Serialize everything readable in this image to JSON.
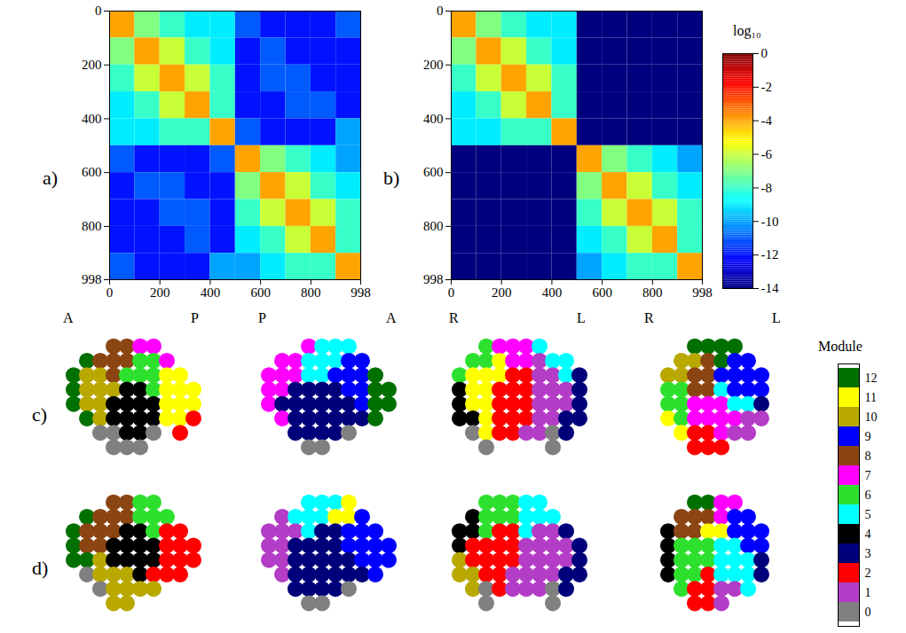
{
  "chart_data": [
    {
      "type": "heatmap",
      "panel": "a)",
      "xlim": [
        0,
        998
      ],
      "ylim": [
        0,
        998
      ],
      "xticks": [
        0,
        200,
        400,
        600,
        800,
        998
      ],
      "yticks": [
        0,
        200,
        400,
        600,
        800,
        998
      ],
      "bins": [
        0,
        100,
        200,
        300,
        400,
        500,
        600,
        700,
        800,
        900,
        998
      ],
      "values": [
        [
          -4,
          -7,
          -8,
          -9,
          -9,
          -11,
          -12,
          -12,
          -12,
          -11
        ],
        [
          -7,
          -4,
          -6,
          -8,
          -9,
          -12,
          -11,
          -12,
          -12,
          -12
        ],
        [
          -8,
          -6,
          -4,
          -6,
          -8,
          -12,
          -11,
          -11,
          -12,
          -12
        ],
        [
          -9,
          -8,
          -6,
          -4,
          -8,
          -12,
          -12,
          -11,
          -11,
          -12
        ],
        [
          -9,
          -9,
          -8,
          -8,
          -4,
          -11,
          -12,
          -12,
          -12,
          -10
        ],
        [
          -11,
          -12,
          -12,
          -12,
          -11,
          -4,
          -7,
          -8,
          -9,
          -10
        ],
        [
          -12,
          -11,
          -11,
          -12,
          -12,
          -7,
          -4,
          -6,
          -8,
          -9
        ],
        [
          -12,
          -12,
          -11,
          -11,
          -12,
          -8,
          -6,
          -4,
          -6,
          -8
        ],
        [
          -12,
          -12,
          -12,
          -11,
          -12,
          -9,
          -8,
          -6,
          -4,
          -8
        ],
        [
          -11,
          -12,
          -12,
          -12,
          -10,
          -10,
          -9,
          -8,
          -8,
          -4
        ]
      ]
    },
    {
      "type": "heatmap",
      "panel": "b)",
      "xlim": [
        0,
        998
      ],
      "ylim": [
        0,
        998
      ],
      "xticks": [
        0,
        200,
        400,
        600,
        800,
        998
      ],
      "yticks": [
        0,
        200,
        400,
        600,
        800,
        998
      ],
      "bins": [
        0,
        100,
        200,
        300,
        400,
        500,
        600,
        700,
        800,
        900,
        998
      ],
      "values": [
        [
          -4,
          -7,
          -8,
          -9,
          -9,
          -14,
          -14,
          -14,
          -14,
          -14
        ],
        [
          -7,
          -4,
          -6,
          -8,
          -9,
          -14,
          -14,
          -14,
          -14,
          -14
        ],
        [
          -8,
          -6,
          -4,
          -6,
          -8,
          -14,
          -14,
          -14,
          -14,
          -14
        ],
        [
          -9,
          -8,
          -6,
          -4,
          -8,
          -14,
          -14,
          -14,
          -14,
          -14
        ],
        [
          -9,
          -9,
          -8,
          -8,
          -4,
          -14,
          -14,
          -14,
          -14,
          -14
        ],
        [
          -14,
          -14,
          -14,
          -14,
          -14,
          -4,
          -7,
          -8,
          -9,
          -10
        ],
        [
          -14,
          -14,
          -14,
          -14,
          -14,
          -7,
          -4,
          -6,
          -8,
          -9
        ],
        [
          -14,
          -14,
          -14,
          -14,
          -14,
          -8,
          -6,
          -4,
          -6,
          -8
        ],
        [
          -14,
          -14,
          -14,
          -14,
          -14,
          -9,
          -8,
          -6,
          -4,
          -8
        ],
        [
          -14,
          -14,
          -14,
          -14,
          -14,
          -10,
          -9,
          -8,
          -8,
          -4
        ]
      ],
      "colorbar": {
        "title": "log₁₀",
        "range": [
          -14,
          0
        ],
        "ticks": [
          0,
          -2,
          -4,
          -6,
          -8,
          -10,
          -12,
          -14
        ]
      }
    },
    {
      "type": "scatter",
      "panel": "c)",
      "module_title": "Module",
      "module_ticks": [
        0,
        1,
        2,
        3,
        4,
        5,
        6,
        7,
        8,
        9,
        10,
        11,
        12
      ],
      "colors": [
        "#808080",
        "#b33dc6",
        "#ff0000",
        "#00007a",
        "#000000",
        "#00ffff",
        "#2ee02e",
        "#ff00ff",
        "#8b4513",
        "#0000ff",
        "#b8a800",
        "#ffff00",
        "#007000"
      ],
      "views": [
        {
          "labels": [
            "A",
            "P"
          ],
          "modules": [
            [
              null,
              null,
              null,
              8,
              8,
              7,
              7,
              null,
              null,
              null
            ],
            [
              null,
              12,
              8,
              8,
              8,
              6,
              6,
              7,
              null,
              null
            ],
            [
              12,
              10,
              10,
              8,
              6,
              6,
              6,
              11,
              11,
              null
            ],
            [
              12,
              10,
              10,
              10,
              4,
              4,
              6,
              11,
              11,
              11
            ],
            [
              12,
              10,
              10,
              4,
              4,
              4,
              4,
              11,
              11,
              11
            ],
            [
              null,
              12,
              10,
              4,
              4,
              4,
              4,
              11,
              11,
              2
            ],
            [
              null,
              null,
              0,
              0,
              4,
              4,
              0,
              null,
              2,
              null
            ],
            [
              null,
              null,
              null,
              0,
              0,
              0,
              null,
              null,
              null,
              null
            ]
          ]
        },
        {
          "labels": [
            "P",
            "A"
          ],
          "modules": [
            [
              null,
              null,
              null,
              7,
              5,
              5,
              5,
              null,
              null,
              null
            ],
            [
              null,
              7,
              7,
              5,
              5,
              5,
              9,
              9,
              null,
              null
            ],
            [
              7,
              7,
              7,
              5,
              5,
              9,
              9,
              9,
              12,
              null
            ],
            [
              7,
              7,
              3,
              3,
              3,
              3,
              9,
              9,
              12,
              12
            ],
            [
              7,
              3,
              3,
              3,
              3,
              3,
              3,
              9,
              12,
              12
            ],
            [
              null,
              7,
              3,
              3,
              3,
              3,
              3,
              3,
              12,
              null
            ],
            [
              null,
              null,
              3,
              3,
              3,
              3,
              0,
              null,
              null,
              null
            ],
            [
              null,
              null,
              null,
              0,
              0,
              null,
              null,
              null,
              null,
              null
            ]
          ]
        },
        {
          "labels": [
            "R",
            "L"
          ],
          "modules": [
            [
              null,
              null,
              6,
              7,
              7,
              7,
              5,
              null,
              null,
              null
            ],
            [
              null,
              6,
              6,
              11,
              7,
              7,
              1,
              5,
              5,
              null
            ],
            [
              6,
              11,
              11,
              11,
              2,
              2,
              1,
              1,
              5,
              3
            ],
            [
              4,
              11,
              11,
              2,
              2,
              2,
              1,
              1,
              1,
              3
            ],
            [
              4,
              11,
              11,
              2,
              2,
              2,
              1,
              1,
              1,
              3
            ],
            [
              4,
              4,
              11,
              2,
              2,
              2,
              1,
              1,
              3,
              3
            ],
            [
              null,
              0,
              11,
              2,
              2,
              1,
              1,
              0,
              3,
              null
            ],
            [
              null,
              null,
              0,
              null,
              null,
              null,
              null,
              0,
              null,
              null
            ]
          ]
        },
        {
          "labels": [
            "R",
            "L"
          ],
          "modules": [
            [
              null,
              null,
              null,
              12,
              12,
              12,
              12,
              null,
              null,
              null
            ],
            [
              null,
              null,
              10,
              10,
              8,
              12,
              9,
              9,
              null,
              null
            ],
            [
              null,
              10,
              10,
              8,
              8,
              9,
              9,
              9,
              9,
              null
            ],
            [
              null,
              6,
              6,
              8,
              8,
              5,
              9,
              9,
              9,
              null
            ],
            [
              null,
              6,
              6,
              7,
              7,
              7,
              5,
              5,
              3,
              null
            ],
            [
              null,
              11,
              6,
              7,
              7,
              7,
              7,
              1,
              1,
              null
            ],
            [
              null,
              null,
              11,
              2,
              2,
              7,
              1,
              1,
              null,
              null
            ],
            [
              null,
              null,
              null,
              2,
              2,
              2,
              null,
              null,
              null,
              null
            ]
          ]
        }
      ]
    },
    {
      "type": "scatter",
      "panel": "d)",
      "views": [
        {
          "modules": [
            [
              null,
              null,
              null,
              8,
              8,
              6,
              6,
              null,
              null,
              null
            ],
            [
              null,
              12,
              8,
              8,
              8,
              6,
              6,
              6,
              null,
              null
            ],
            [
              12,
              8,
              8,
              8,
              4,
              4,
              6,
              2,
              2,
              null
            ],
            [
              12,
              8,
              8,
              4,
              4,
              4,
              4,
              2,
              2,
              2
            ],
            [
              12,
              12,
              10,
              4,
              4,
              4,
              4,
              2,
              2,
              2
            ],
            [
              null,
              0,
              10,
              10,
              10,
              4,
              2,
              2,
              2,
              null
            ],
            [
              null,
              null,
              0,
              10,
              10,
              10,
              10,
              null,
              null,
              null
            ],
            [
              null,
              null,
              null,
              10,
              10,
              null,
              null,
              null,
              null,
              null
            ]
          ]
        },
        {
          "modules": [
            [
              null,
              null,
              null,
              5,
              5,
              5,
              11,
              null,
              null,
              null
            ],
            [
              null,
              1,
              5,
              5,
              5,
              11,
              11,
              9,
              null,
              null
            ],
            [
              1,
              1,
              1,
              5,
              3,
              3,
              9,
              9,
              9,
              null
            ],
            [
              1,
              1,
              3,
              3,
              3,
              3,
              9,
              9,
              9,
              9
            ],
            [
              1,
              1,
              3,
              3,
              3,
              3,
              3,
              9,
              9,
              9
            ],
            [
              null,
              1,
              3,
              3,
              3,
              3,
              3,
              3,
              9,
              null
            ],
            [
              null,
              null,
              3,
              3,
              3,
              3,
              0,
              null,
              null,
              null
            ],
            [
              null,
              null,
              null,
              0,
              0,
              null,
              null,
              null,
              null,
              null
            ]
          ]
        },
        {
          "modules": [
            [
              null,
              null,
              6,
              6,
              6,
              5,
              5,
              null,
              null,
              null
            ],
            [
              null,
              4,
              6,
              6,
              6,
              5,
              5,
              5,
              null,
              null
            ],
            [
              4,
              4,
              6,
              2,
              2,
              5,
              1,
              1,
              3,
              null
            ],
            [
              4,
              2,
              2,
              2,
              2,
              1,
              1,
              1,
              1,
              3
            ],
            [
              10,
              2,
              2,
              2,
              2,
              1,
              1,
              1,
              1,
              3
            ],
            [
              10,
              10,
              2,
              2,
              1,
              1,
              1,
              1,
              3,
              3
            ],
            [
              null,
              10,
              0,
              2,
              1,
              1,
              1,
              0,
              3,
              null
            ],
            [
              null,
              null,
              0,
              null,
              null,
              null,
              null,
              0,
              null,
              null
            ]
          ]
        },
        {
          "modules": [
            [
              null,
              null,
              null,
              12,
              12,
              7,
              7,
              null,
              null,
              null
            ],
            [
              null,
              null,
              8,
              8,
              8,
              7,
              9,
              9,
              null,
              null
            ],
            [
              null,
              4,
              8,
              8,
              11,
              11,
              9,
              9,
              9,
              null
            ],
            [
              null,
              4,
              6,
              6,
              6,
              5,
              5,
              9,
              9,
              null
            ],
            [
              null,
              4,
              6,
              6,
              6,
              5,
              5,
              5,
              3,
              null
            ],
            [
              null,
              4,
              6,
              6,
              2,
              5,
              5,
              5,
              3,
              null
            ],
            [
              null,
              null,
              6,
              2,
              2,
              1,
              1,
              5,
              null,
              null
            ],
            [
              null,
              null,
              null,
              2,
              2,
              1,
              null,
              null,
              null,
              null
            ]
          ]
        }
      ]
    }
  ]
}
